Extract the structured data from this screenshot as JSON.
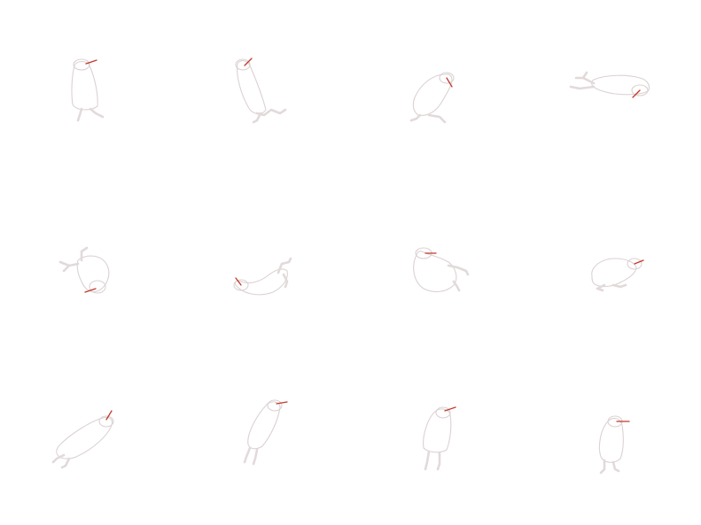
{
  "sprite_sheet": {
    "grid": {
      "rows": 3,
      "columns": 4
    },
    "colors": {
      "background": "#ffffff",
      "outline": "#dcd2d2",
      "legs": "#e2dada",
      "beak": "#c0392b"
    },
    "frames": [
      {
        "row": 1,
        "col": 1,
        "pose": "standing"
      },
      {
        "row": 1,
        "col": 2,
        "pose": "leaning-back"
      },
      {
        "row": 1,
        "col": 3,
        "pose": "crouching"
      },
      {
        "row": 1,
        "col": 4,
        "pose": "lying-flat"
      },
      {
        "row": 2,
        "col": 1,
        "pose": "rolling"
      },
      {
        "row": 2,
        "col": 2,
        "pose": "arching"
      },
      {
        "row": 2,
        "col": 3,
        "pose": "curled"
      },
      {
        "row": 2,
        "col": 4,
        "pose": "crouched-low"
      },
      {
        "row": 3,
        "col": 1,
        "pose": "leaning-forward"
      },
      {
        "row": 3,
        "col": 2,
        "pose": "rising"
      },
      {
        "row": 3,
        "col": 3,
        "pose": "upright"
      },
      {
        "row": 3,
        "col": 4,
        "pose": "standing-tall"
      }
    ]
  }
}
